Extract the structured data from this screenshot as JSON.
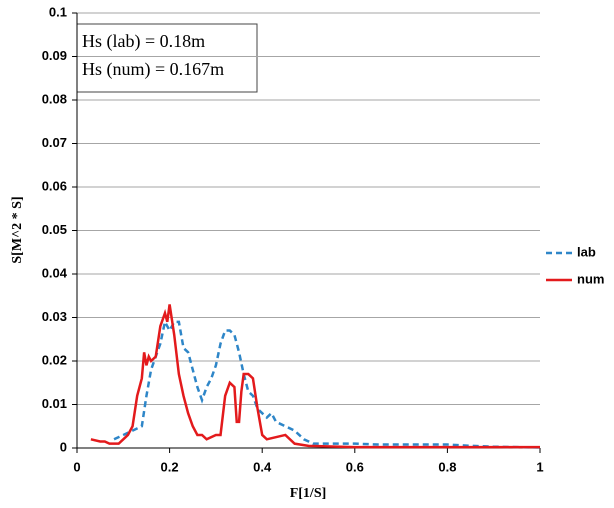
{
  "chart_data": {
    "type": "line",
    "x_label": "F[1/S]",
    "y_label": "S[M^2 * S]",
    "annotations": [
      "Hs (lab) = 0.18m",
      "Hs (num) = 0.167m"
    ],
    "xlim": [
      0,
      1
    ],
    "xticks": [
      0,
      0.2,
      0.4,
      0.6,
      0.8,
      1
    ],
    "ylim": [
      0,
      0.1
    ],
    "yticks": [
      0,
      0.01,
      0.02,
      0.03,
      0.04,
      0.05,
      0.06,
      0.07,
      0.08,
      0.09,
      0.1
    ],
    "grid": true,
    "legend": "right",
    "series": [
      {
        "name": "lab",
        "color": "#2e86c8",
        "dash": true,
        "x": [
          0.08,
          0.1,
          0.12,
          0.14,
          0.15,
          0.16,
          0.17,
          0.18,
          0.19,
          0.2,
          0.21,
          0.22,
          0.23,
          0.24,
          0.25,
          0.26,
          0.27,
          0.28,
          0.29,
          0.3,
          0.31,
          0.32,
          0.33,
          0.34,
          0.35,
          0.36,
          0.37,
          0.38,
          0.39,
          0.4,
          0.41,
          0.42,
          0.43,
          0.45,
          0.47,
          0.48,
          0.49,
          0.51,
          0.55,
          0.6,
          0.65,
          0.7,
          0.75,
          0.8,
          0.85,
          0.9,
          1.0
        ],
        "values": [
          0.002,
          0.003,
          0.004,
          0.005,
          0.012,
          0.018,
          0.021,
          0.024,
          0.029,
          0.027,
          0.029,
          0.029,
          0.023,
          0.022,
          0.018,
          0.014,
          0.011,
          0.014,
          0.016,
          0.019,
          0.024,
          0.027,
          0.027,
          0.026,
          0.022,
          0.017,
          0.013,
          0.012,
          0.009,
          0.008,
          0.007,
          0.008,
          0.006,
          0.005,
          0.004,
          0.003,
          0.002,
          0.001,
          0.001,
          0.001,
          0.0008,
          0.0008,
          0.0008,
          0.0008,
          0.0005,
          0.0003,
          0.0001
        ]
      },
      {
        "name": "num",
        "color": "#e31a1c",
        "dash": false,
        "x": [
          0.03,
          0.05,
          0.06,
          0.07,
          0.09,
          0.1,
          0.11,
          0.12,
          0.13,
          0.14,
          0.145,
          0.15,
          0.155,
          0.16,
          0.17,
          0.18,
          0.19,
          0.195,
          0.2,
          0.21,
          0.22,
          0.23,
          0.24,
          0.25,
          0.26,
          0.27,
          0.28,
          0.3,
          0.31,
          0.32,
          0.33,
          0.34,
          0.345,
          0.35,
          0.355,
          0.36,
          0.37,
          0.38,
          0.39,
          0.4,
          0.41,
          0.45,
          0.47,
          0.5,
          0.6,
          0.8,
          1.0
        ],
        "values": [
          0.002,
          0.0015,
          0.0015,
          0.001,
          0.001,
          0.002,
          0.003,
          0.005,
          0.012,
          0.016,
          0.022,
          0.019,
          0.021,
          0.02,
          0.021,
          0.028,
          0.031,
          0.029,
          0.033,
          0.026,
          0.017,
          0.012,
          0.008,
          0.005,
          0.003,
          0.003,
          0.002,
          0.003,
          0.003,
          0.012,
          0.015,
          0.014,
          0.006,
          0.006,
          0.013,
          0.017,
          0.017,
          0.016,
          0.009,
          0.003,
          0.002,
          0.003,
          0.001,
          0.0005,
          0.0002,
          0.0002,
          0.0002
        ]
      }
    ]
  }
}
